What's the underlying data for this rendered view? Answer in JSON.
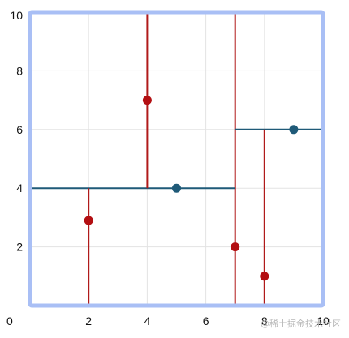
{
  "chart_data": {
    "type": "scatter",
    "title": "",
    "xlabel": "",
    "ylabel": "",
    "xlim": [
      0,
      10
    ],
    "ylim": [
      0,
      10
    ],
    "x_ticks": [
      0,
      2,
      4,
      6,
      8,
      10
    ],
    "y_ticks": [
      2,
      4,
      6,
      8,
      10
    ],
    "grid": true,
    "colors": {
      "frame": "#a9bff5",
      "grid": "#e3e3e3",
      "vertical_split": "#b01a1a",
      "horizontal_split": "#1f5a78",
      "red_point": "#b30f12",
      "blue_point": "#1f5a78"
    },
    "points": [
      {
        "x": 2,
        "y": 2.9,
        "color": "red"
      },
      {
        "x": 4,
        "y": 7,
        "color": "red"
      },
      {
        "x": 5,
        "y": 4,
        "color": "blue"
      },
      {
        "x": 7,
        "y": 2,
        "color": "red"
      },
      {
        "x": 8,
        "y": 1,
        "color": "red"
      },
      {
        "x": 9,
        "y": 6,
        "color": "blue"
      }
    ],
    "splits": [
      {
        "orientation": "vertical",
        "x": 7,
        "y_from": 0,
        "y_to": 10,
        "color": "red"
      },
      {
        "orientation": "horizontal",
        "y": 4,
        "x_from": 0,
        "x_to": 7,
        "color": "blue"
      },
      {
        "orientation": "vertical",
        "x": 2,
        "y_from": 0,
        "y_to": 4,
        "color": "red"
      },
      {
        "orientation": "vertical",
        "x": 4,
        "y_from": 4,
        "y_to": 10,
        "color": "red"
      },
      {
        "orientation": "horizontal",
        "y": 6,
        "x_from": 7,
        "x_to": 10,
        "color": "blue"
      },
      {
        "orientation": "vertical",
        "x": 8,
        "y_from": 0,
        "y_to": 6,
        "color": "red"
      }
    ]
  },
  "watermark": "@稀土掘金技术社区"
}
